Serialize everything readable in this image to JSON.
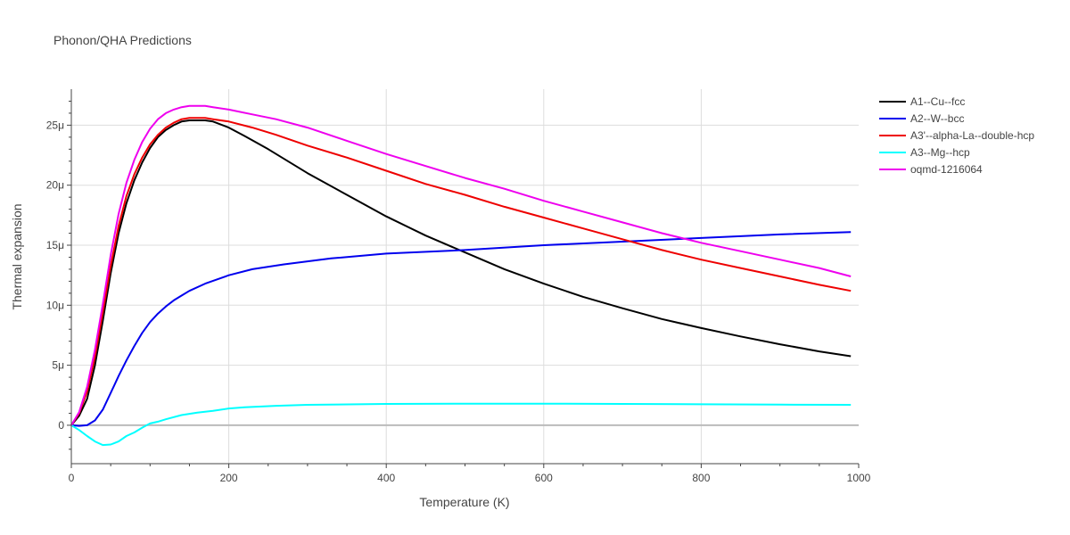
{
  "chart_data": {
    "type": "line",
    "title": "Phonon/QHA Predictions",
    "xlabel": "Temperature (K)",
    "ylabel": "Thermal expansion",
    "xlim": [
      0,
      1000
    ],
    "ylim": [
      -3.2e-06,
      2.8e-05
    ],
    "x_ticks": [
      0,
      200,
      400,
      600,
      800,
      1000
    ],
    "x_tick_labels": [
      "0",
      "200",
      "400",
      "600",
      "800",
      "1000"
    ],
    "y_ticks": [
      0,
      5e-06,
      1e-05,
      1.5e-05,
      2e-05,
      2.5e-05
    ],
    "y_tick_labels": [
      "0",
      "5μ",
      "10μ",
      "15μ",
      "20μ",
      "25μ"
    ],
    "grid": true,
    "legend_position": "top-right",
    "series": [
      {
        "name": "A1--Cu--fcc",
        "color": "#000000",
        "x": [
          0,
          10,
          20,
          30,
          40,
          50,
          60,
          70,
          80,
          90,
          100,
          110,
          120,
          130,
          140,
          150,
          160,
          170,
          180,
          200,
          220,
          250,
          300,
          350,
          400,
          450,
          500,
          550,
          600,
          650,
          700,
          750,
          800,
          850,
          900,
          950,
          990
        ],
        "y": [
          0,
          8e-07,
          2.2e-06,
          5e-06,
          8.7e-06,
          1.27e-05,
          1.6e-05,
          1.85e-05,
          2.04e-05,
          2.19e-05,
          2.31e-05,
          2.4e-05,
          2.46e-05,
          2.5e-05,
          2.53e-05,
          2.54e-05,
          2.54e-05,
          2.54e-05,
          2.53e-05,
          2.48e-05,
          2.41e-05,
          2.3e-05,
          2.1e-05,
          1.92e-05,
          1.74e-05,
          1.58e-05,
          1.44e-05,
          1.3e-05,
          1.18e-05,
          1.07e-05,
          9.75e-06,
          8.85e-06,
          8.1e-06,
          7.4e-06,
          6.75e-06,
          6.15e-06,
          5.75e-06
        ]
      },
      {
        "name": "A2--W--bcc",
        "color": "#0000ee",
        "x": [
          0,
          10,
          20,
          30,
          40,
          50,
          60,
          70,
          80,
          90,
          100,
          110,
          120,
          130,
          140,
          150,
          170,
          200,
          230,
          270,
          330,
          400,
          500,
          600,
          700,
          800,
          900,
          990
        ],
        "y": [
          0,
          -5e-08,
          0,
          4e-07,
          1.3e-06,
          2.7e-06,
          4.1e-06,
          5.4e-06,
          6.6e-06,
          7.7e-06,
          8.6e-06,
          9.3e-06,
          9.9e-06,
          1.04e-05,
          1.08e-05,
          1.12e-05,
          1.18e-05,
          1.25e-05,
          1.3e-05,
          1.34e-05,
          1.39e-05,
          1.43e-05,
          1.46e-05,
          1.5e-05,
          1.53e-05,
          1.56e-05,
          1.59e-05,
          1.61e-05
        ]
      },
      {
        "name": "A3'--alpha-La--double-hcp",
        "color": "#ee0000",
        "x": [
          0,
          10,
          20,
          30,
          40,
          50,
          60,
          70,
          80,
          90,
          100,
          110,
          120,
          130,
          140,
          150,
          160,
          170,
          180,
          200,
          230,
          260,
          300,
          350,
          400,
          450,
          500,
          550,
          600,
          650,
          700,
          750,
          800,
          850,
          900,
          950,
          990
        ],
        "y": [
          0,
          1e-06,
          2.8e-06,
          5.7e-06,
          9.4e-06,
          1.33e-05,
          1.66e-05,
          1.91e-05,
          2.09e-05,
          2.23e-05,
          2.34e-05,
          2.42e-05,
          2.48e-05,
          2.52e-05,
          2.55e-05,
          2.56e-05,
          2.56e-05,
          2.56e-05,
          2.55e-05,
          2.53e-05,
          2.48e-05,
          2.42e-05,
          2.33e-05,
          2.23e-05,
          2.12e-05,
          2.01e-05,
          1.92e-05,
          1.82e-05,
          1.73e-05,
          1.64e-05,
          1.55e-05,
          1.46e-05,
          1.38e-05,
          1.31e-05,
          1.24e-05,
          1.17e-05,
          1.12e-05
        ]
      },
      {
        "name": "A3--Mg--hcp",
        "color": "#00ffff",
        "x": [
          0,
          10,
          20,
          30,
          40,
          50,
          60,
          70,
          80,
          90,
          100,
          110,
          120,
          140,
          160,
          180,
          200,
          220,
          260,
          300,
          400,
          500,
          600,
          700,
          800,
          900,
          990
        ],
        "y": [
          0,
          -4e-07,
          -9e-07,
          -1.35e-06,
          -1.65e-06,
          -1.6e-06,
          -1.35e-06,
          -9e-07,
          -6e-07,
          -2e-07,
          1.5e-07,
          3e-07,
          5e-07,
          8.5e-07,
          1.05e-06,
          1.2e-06,
          1.4e-06,
          1.5e-06,
          1.62e-06,
          1.7e-06,
          1.78e-06,
          1.8e-06,
          1.8e-06,
          1.78e-06,
          1.75e-06,
          1.72e-06,
          1.7e-06
        ]
      },
      {
        "name": "oqmd-1216064",
        "color": "#ee00ee",
        "x": [
          0,
          10,
          20,
          30,
          40,
          50,
          60,
          70,
          80,
          90,
          100,
          110,
          120,
          130,
          140,
          150,
          160,
          170,
          180,
          200,
          230,
          260,
          300,
          350,
          400,
          450,
          500,
          550,
          600,
          650,
          700,
          750,
          800,
          850,
          900,
          950,
          990
        ],
        "y": [
          0,
          1.1e-06,
          3.2e-06,
          6.3e-06,
          1.01e-05,
          1.42e-05,
          1.76e-05,
          2.02e-05,
          2.21e-05,
          2.36e-05,
          2.47e-05,
          2.55e-05,
          2.6e-05,
          2.63e-05,
          2.65e-05,
          2.66e-05,
          2.66e-05,
          2.66e-05,
          2.65e-05,
          2.63e-05,
          2.59e-05,
          2.55e-05,
          2.48e-05,
          2.37e-05,
          2.26e-05,
          2.16e-05,
          2.06e-05,
          1.97e-05,
          1.87e-05,
          1.78e-05,
          1.69e-05,
          1.6e-05,
          1.52e-05,
          1.45e-05,
          1.38e-05,
          1.31e-05,
          1.24e-05
        ]
      }
    ]
  }
}
